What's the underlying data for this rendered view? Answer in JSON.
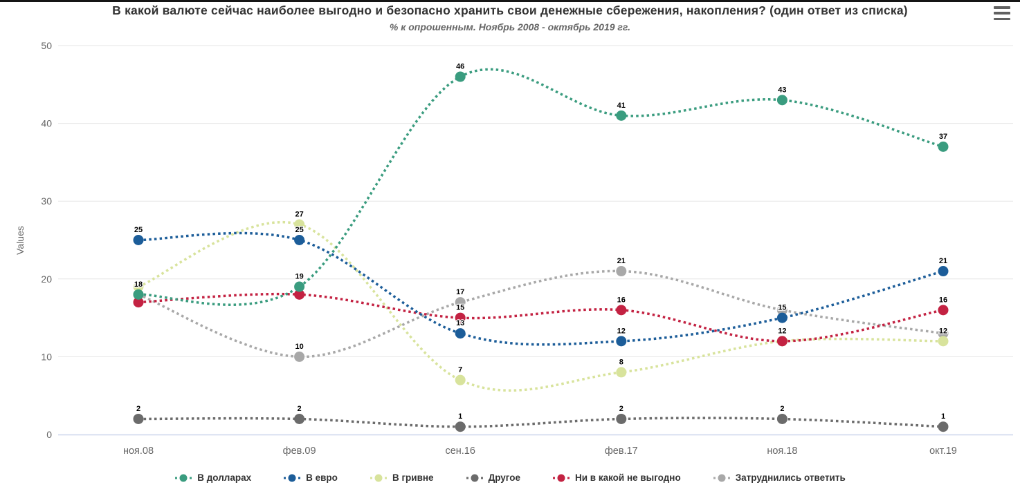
{
  "chart_data": {
    "type": "line",
    "line_style": "dotted-spline",
    "title": "В какой валюте сейчас наиболее выгодно и безопасно хранить свои денежные сбережения, накопления? (один ответ из списка)",
    "subtitle": "% к опрошенным. Ноябрь 2008 - октябрь 2019 гг.",
    "ylabel": "Values",
    "xlabel": "",
    "ylim": [
      0,
      50
    ],
    "yticks": [
      0,
      10,
      20,
      30,
      40,
      50
    ],
    "grid": true,
    "legend_position": "bottom",
    "categories": [
      "ноя.08",
      "фев.09",
      "сен.16",
      "фев.17",
      "ноя.18",
      "окт.19"
    ],
    "series": [
      {
        "name": "В долларах",
        "color": "#3a9c7f",
        "values": [
          18,
          19,
          46,
          41,
          43,
          37
        ],
        "hidden_labels": []
      },
      {
        "name": "В евро",
        "color": "#1c5d99",
        "values": [
          25,
          25,
          13,
          12,
          15,
          21
        ],
        "hidden_labels": []
      },
      {
        "name": "В гривне",
        "color": "#d8e39c",
        "values": [
          19,
          27,
          7,
          8,
          12,
          12
        ],
        "hidden_labels": [
          0,
          4
        ]
      },
      {
        "name": "Другое",
        "color": "#6b6b6b",
        "values": [
          2,
          2,
          1,
          2,
          2,
          1
        ],
        "hidden_labels": []
      },
      {
        "name": "Ни в какой не выгодно",
        "color": "#c32242",
        "values": [
          17,
          18,
          15,
          16,
          12,
          16
        ],
        "hidden_labels": [
          0,
          1
        ]
      },
      {
        "name": "Затруднились ответить",
        "color": "#a8a8a8",
        "values": [
          18,
          10,
          17,
          21,
          16,
          13
        ],
        "hidden_labels": [
          0,
          4,
          5
        ]
      }
    ],
    "colors": {
      "axis_line": "#ccd6eb",
      "grid_line": "#e6e6e6",
      "tick_label": "#666666",
      "data_label": "#000000",
      "title": "#333333",
      "subtitle": "#666666"
    }
  },
  "menu": {
    "tooltip": "Chart context menu"
  }
}
